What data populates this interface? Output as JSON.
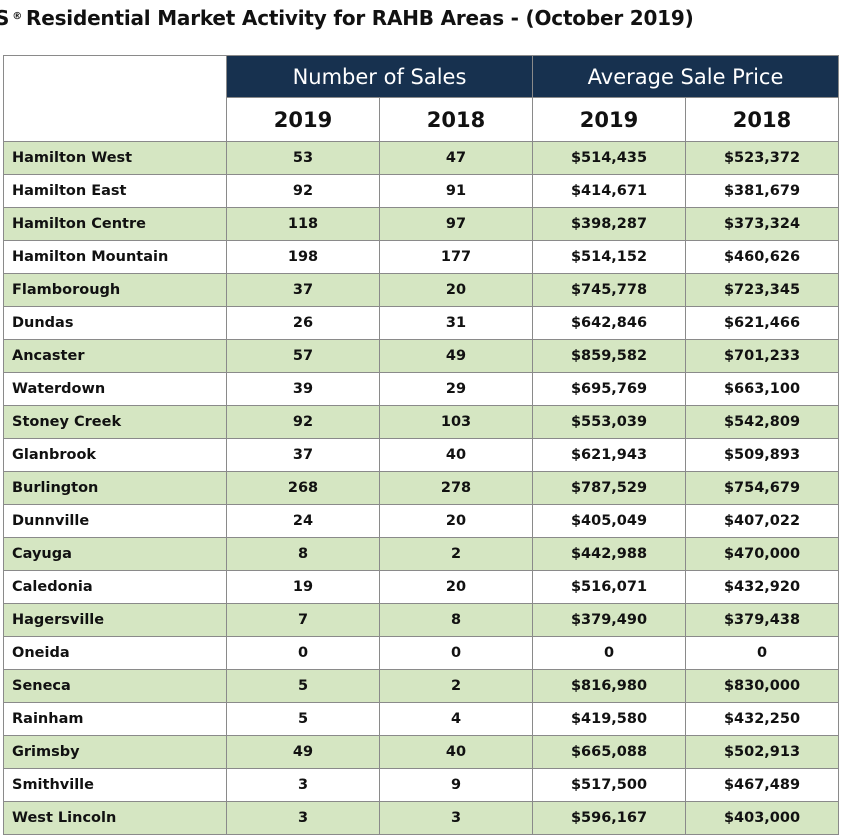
{
  "title": {
    "prefix": "S",
    "registered": "®",
    "text": "Residential Market Activity for RAHB Areas - (October 2019)"
  },
  "colors": {
    "header_bg": "#17314f",
    "header_text": "#ffffff",
    "row_shade": "#d5e6c2",
    "row_plain": "#ffffff",
    "border": "#8a8a8a"
  },
  "chart_data": {
    "type": "table",
    "title": "Residential Market Activity for RAHB Areas - (October 2019)",
    "column_groups": [
      "Number of Sales",
      "Average Sale Price"
    ],
    "years": [
      "2019",
      "2018",
      "2019",
      "2018"
    ],
    "rows": [
      {
        "area": "Hamilton West",
        "sales_2019": "53",
        "sales_2018": "47",
        "price_2019": "$514,435",
        "price_2018": "$523,372"
      },
      {
        "area": "Hamilton East",
        "sales_2019": "92",
        "sales_2018": "91",
        "price_2019": "$414,671",
        "price_2018": "$381,679"
      },
      {
        "area": "Hamilton Centre",
        "sales_2019": "118",
        "sales_2018": "97",
        "price_2019": "$398,287",
        "price_2018": "$373,324"
      },
      {
        "area": "Hamilton Mountain",
        "sales_2019": "198",
        "sales_2018": "177",
        "price_2019": "$514,152",
        "price_2018": "$460,626"
      },
      {
        "area": "Flamborough",
        "sales_2019": "37",
        "sales_2018": "20",
        "price_2019": "$745,778",
        "price_2018": "$723,345"
      },
      {
        "area": "Dundas",
        "sales_2019": "26",
        "sales_2018": "31",
        "price_2019": "$642,846",
        "price_2018": "$621,466"
      },
      {
        "area": "Ancaster",
        "sales_2019": "57",
        "sales_2018": "49",
        "price_2019": "$859,582",
        "price_2018": "$701,233"
      },
      {
        "area": "Waterdown",
        "sales_2019": "39",
        "sales_2018": "29",
        "price_2019": "$695,769",
        "price_2018": "$663,100"
      },
      {
        "area": "Stoney Creek",
        "sales_2019": "92",
        "sales_2018": "103",
        "price_2019": "$553,039",
        "price_2018": "$542,809"
      },
      {
        "area": "Glanbrook",
        "sales_2019": "37",
        "sales_2018": "40",
        "price_2019": "$621,943",
        "price_2018": "$509,893"
      },
      {
        "area": "Burlington",
        "sales_2019": "268",
        "sales_2018": "278",
        "price_2019": "$787,529",
        "price_2018": "$754,679"
      },
      {
        "area": "Dunnville",
        "sales_2019": "24",
        "sales_2018": "20",
        "price_2019": "$405,049",
        "price_2018": "$407,022"
      },
      {
        "area": "Cayuga",
        "sales_2019": "8",
        "sales_2018": "2",
        "price_2019": "$442,988",
        "price_2018": "$470,000"
      },
      {
        "area": "Caledonia",
        "sales_2019": "19",
        "sales_2018": "20",
        "price_2019": "$516,071",
        "price_2018": "$432,920"
      },
      {
        "area": "Hagersville",
        "sales_2019": "7",
        "sales_2018": "8",
        "price_2019": "$379,490",
        "price_2018": "$379,438"
      },
      {
        "area": "Oneida",
        "sales_2019": "0",
        "sales_2018": "0",
        "price_2019": "0",
        "price_2018": "0"
      },
      {
        "area": "Seneca",
        "sales_2019": "5",
        "sales_2018": "2",
        "price_2019": "$816,980",
        "price_2018": "$830,000"
      },
      {
        "area": "Rainham",
        "sales_2019": "5",
        "sales_2018": "4",
        "price_2019": "$419,580",
        "price_2018": "$432,250"
      },
      {
        "area": "Grimsby",
        "sales_2019": "49",
        "sales_2018": "40",
        "price_2019": "$665,088",
        "price_2018": "$502,913"
      },
      {
        "area": "Smithville",
        "sales_2019": "3",
        "sales_2018": "9",
        "price_2019": "$517,500",
        "price_2018": "$467,489"
      },
      {
        "area": "West Lincoln",
        "sales_2019": "3",
        "sales_2018": "3",
        "price_2019": "$596,167",
        "price_2018": "$403,000"
      }
    ]
  }
}
